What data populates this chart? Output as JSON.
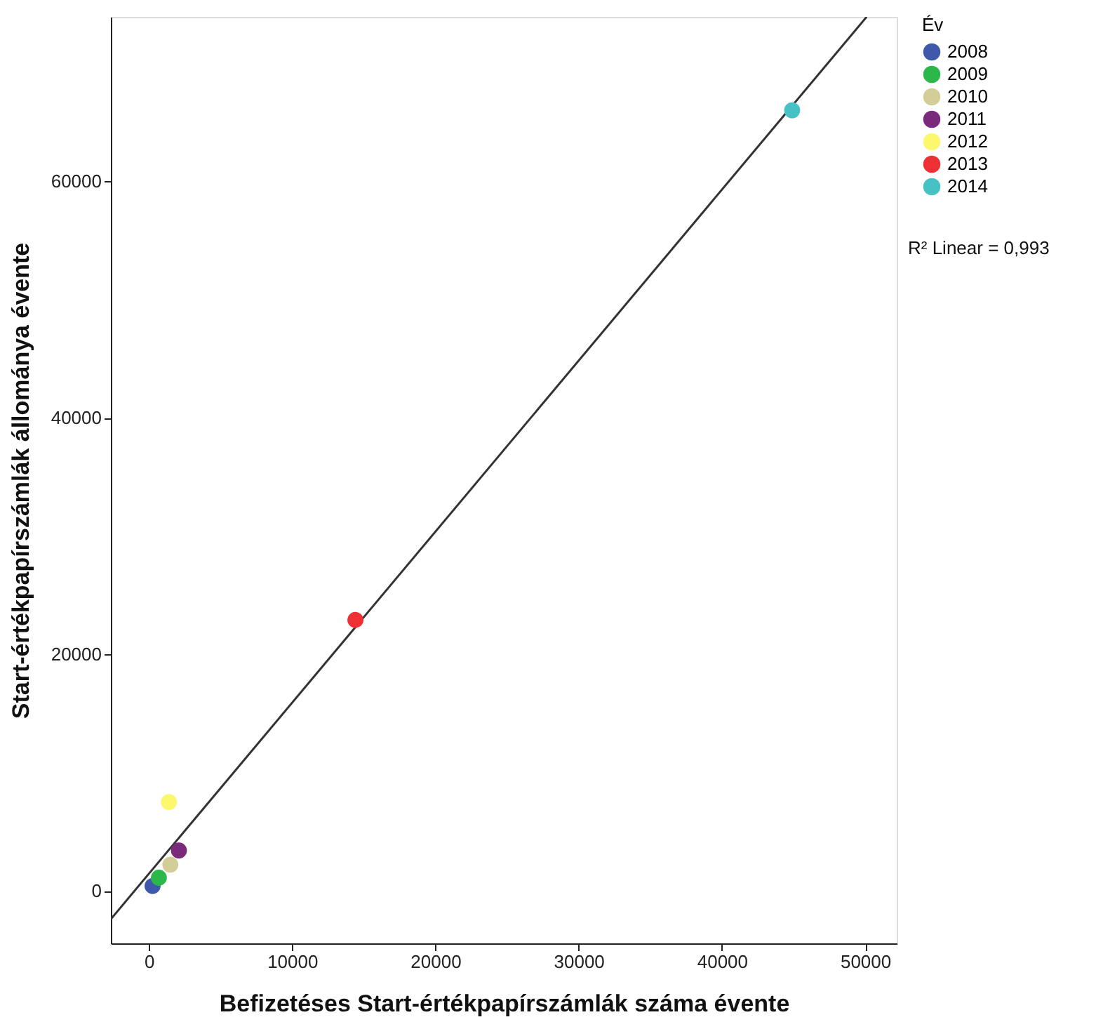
{
  "chart_data": {
    "type": "scatter",
    "xlabel": "Befizetéses Start-értékpapírszámlák száma évente",
    "ylabel": "Start-értékpapírszámlák állománya évente",
    "legend_title": "Év",
    "series": [
      {
        "name": "2008",
        "color": "#3e58ac",
        "x": [
          260
        ],
        "values": [
          400
        ]
      },
      {
        "name": "2009",
        "color": "#2bb74a",
        "x": [
          700
        ],
        "values": [
          1100
        ]
      },
      {
        "name": "2010",
        "color": "#d3ce97",
        "x": [
          1500
        ],
        "values": [
          2200
        ]
      },
      {
        "name": "2011",
        "color": "#792a7b",
        "x": [
          2100
        ],
        "values": [
          3400
        ]
      },
      {
        "name": "2012",
        "color": "#fbf86e",
        "x": [
          1400
        ],
        "values": [
          7500
        ]
      },
      {
        "name": "2013",
        "color": "#ec3034",
        "x": [
          14420
        ],
        "values": [
          22900
        ]
      },
      {
        "name": "2014",
        "color": "#47c2c4",
        "x": [
          44900
        ],
        "values": [
          66000
        ]
      },
      {
        "type": "line",
        "marker": "none",
        "color": "#333333",
        "x": [
          -2650,
          50100
        ],
        "values": [
          -2400,
          73900
        ]
      }
    ],
    "annotations": [
      "R² Linear = 0,993"
    ],
    "xlim": [
      -2650,
      52200
    ],
    "ylim": [
      -4450,
      73900
    ],
    "xticks": [
      0,
      10000,
      20000,
      30000,
      40000,
      50000
    ],
    "yticks": [
      0,
      20000,
      40000,
      60000
    ],
    "grid": false,
    "legend": "top right",
    "marker": "circle"
  }
}
